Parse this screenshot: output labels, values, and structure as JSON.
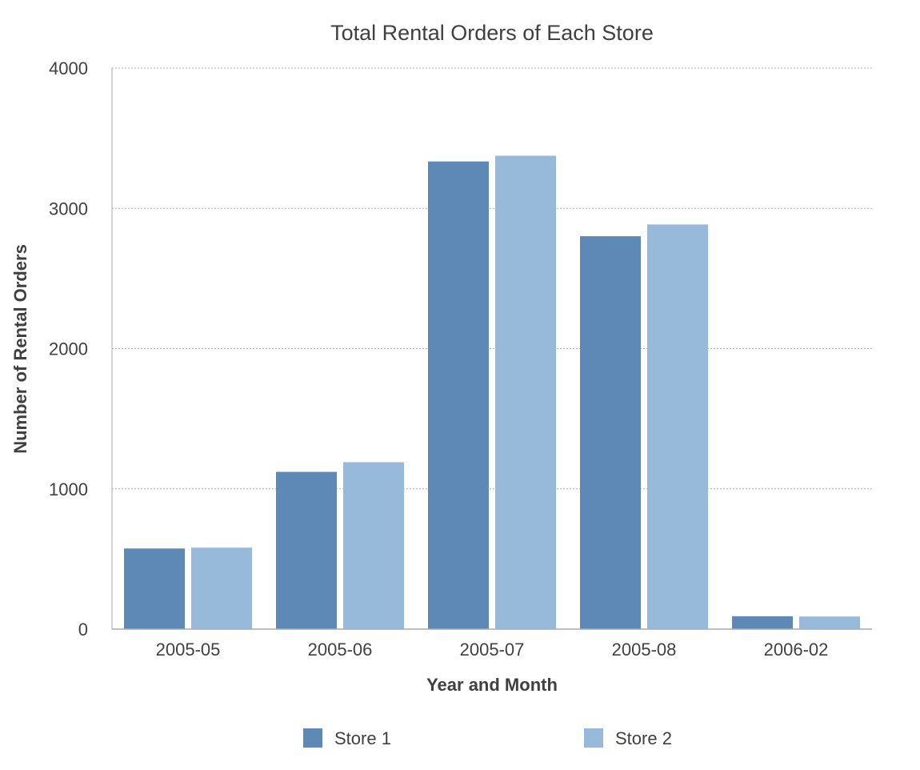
{
  "chart_data": {
    "type": "bar",
    "title": "Total Rental Orders of Each Store",
    "xlabel": "Year and Month",
    "ylabel": "Number of Rental Orders",
    "categories": [
      "2005-05",
      "2005-06",
      "2005-07",
      "2005-08",
      "2006-02"
    ],
    "series": [
      {
        "name": "Store 1",
        "values": [
          575,
          1121,
          3334,
          2801,
          92
        ]
      },
      {
        "name": "Store 2",
        "values": [
          581,
          1190,
          3375,
          2885,
          90
        ]
      }
    ],
    "ylim": [
      0,
      4000
    ],
    "yticks": [
      0,
      1000,
      2000,
      3000,
      4000
    ],
    "grid": true,
    "legend_position": "bottom-center",
    "colors": {
      "series": [
        "#5e88b6",
        "#97b9da"
      ],
      "grid": "#b0b0b0",
      "axis": "#aaaaaa",
      "text": "#404040"
    }
  }
}
